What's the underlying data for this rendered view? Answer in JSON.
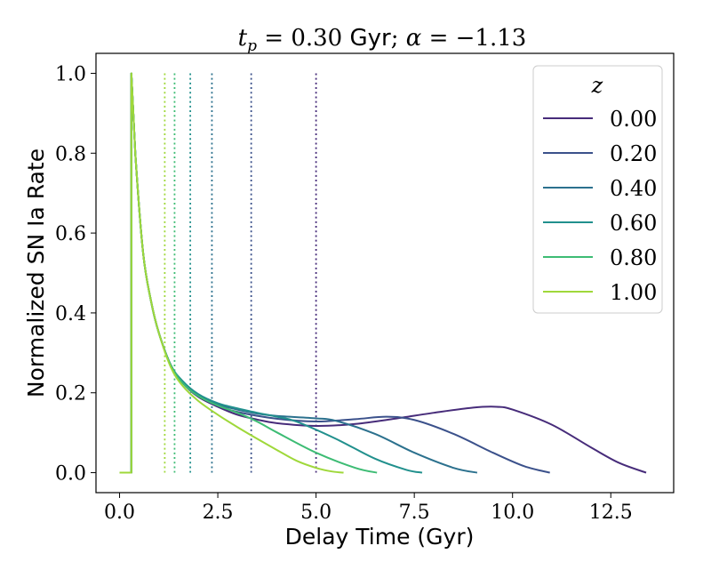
{
  "chart_data": {
    "type": "line",
    "title": "t_p = 0.30 Gyr; α = −1.13",
    "title_parts": {
      "tvar": "t",
      "tsub": "p",
      "eq1": " = 0.30 ",
      "unit": "Gyr",
      "sep": "; ",
      "alpha": "α",
      "eq2": " = −1.13"
    },
    "xlabel": "Delay Time (Gyr)",
    "ylabel": "Normalized SN Ia Rate",
    "xlim": [
      -0.6,
      14.1
    ],
    "ylim": [
      -0.05,
      1.05
    ],
    "xticks": [
      0.0,
      2.5,
      5.0,
      7.5,
      10.0,
      12.5
    ],
    "xtick_labels": [
      "0.0",
      "2.5",
      "5.0",
      "7.5",
      "10.0",
      "12.5"
    ],
    "yticks": [
      0.0,
      0.2,
      0.4,
      0.6,
      0.8,
      1.0
    ],
    "ytick_labels": [
      "0.0",
      "0.2",
      "0.4",
      "0.6",
      "0.8",
      "1.0"
    ],
    "grid": false,
    "legend": {
      "title": "z",
      "placement": "top-right"
    },
    "series": [
      {
        "name": "0.00",
        "color": "#472c7a",
        "x": [
          0.0,
          0.3,
          0.3,
          0.4,
          0.6,
          0.8,
          1.0,
          1.3,
          1.6,
          2.0,
          2.5,
          3.0,
          3.5,
          4.0,
          5.0,
          6.0,
          7.0,
          8.0,
          9.0,
          9.6,
          10.0,
          11.0,
          12.0,
          12.7,
          13.4
        ],
        "y": [
          0.0,
          0.0,
          1.0,
          0.8,
          0.55,
          0.43,
          0.35,
          0.27,
          0.225,
          0.19,
          0.165,
          0.145,
          0.133,
          0.124,
          0.117,
          0.122,
          0.135,
          0.15,
          0.163,
          0.165,
          0.158,
          0.12,
          0.063,
          0.025,
          0.0
        ],
        "cutoff": 5.0
      },
      {
        "name": "0.20",
        "color": "#3b518b",
        "x": [
          0.0,
          0.3,
          0.3,
          0.4,
          0.6,
          0.8,
          1.0,
          1.3,
          1.6,
          2.0,
          2.5,
          3.0,
          4.0,
          5.0,
          6.0,
          6.8,
          7.5,
          8.5,
          9.5,
          10.3,
          10.95
        ],
        "y": [
          0.0,
          0.0,
          1.0,
          0.8,
          0.55,
          0.43,
          0.35,
          0.27,
          0.226,
          0.192,
          0.168,
          0.152,
          0.135,
          0.128,
          0.134,
          0.14,
          0.132,
          0.097,
          0.05,
          0.016,
          0.0
        ],
        "cutoff": 3.35
      },
      {
        "name": "0.40",
        "color": "#2c718e",
        "x": [
          0.0,
          0.3,
          0.3,
          0.4,
          0.6,
          0.8,
          1.0,
          1.3,
          1.6,
          2.0,
          2.5,
          3.0,
          3.5,
          4.0,
          5.0,
          5.5,
          6.5,
          7.5,
          8.5,
          9.1
        ],
        "y": [
          0.0,
          0.0,
          1.0,
          0.8,
          0.55,
          0.43,
          0.35,
          0.27,
          0.228,
          0.195,
          0.171,
          0.158,
          0.148,
          0.142,
          0.136,
          0.13,
          0.097,
          0.05,
          0.012,
          0.0
        ],
        "cutoff": 2.35
      },
      {
        "name": "0.60",
        "color": "#21908d",
        "x": [
          0.0,
          0.3,
          0.3,
          0.4,
          0.6,
          0.8,
          1.0,
          1.3,
          1.6,
          2.0,
          2.5,
          3.0,
          3.5,
          4.0,
          4.5,
          5.5,
          6.5,
          7.3,
          7.7
        ],
        "y": [
          0.0,
          0.0,
          1.0,
          0.8,
          0.55,
          0.43,
          0.35,
          0.27,
          0.23,
          0.197,
          0.174,
          0.161,
          0.15,
          0.14,
          0.128,
          0.085,
          0.035,
          0.007,
          0.0
        ],
        "cutoff": 1.8
      },
      {
        "name": "0.80",
        "color": "#3dbc74",
        "x": [
          0.0,
          0.3,
          0.3,
          0.4,
          0.6,
          0.8,
          1.0,
          1.3,
          1.6,
          2.0,
          2.5,
          3.0,
          3.5,
          4.0,
          5.0,
          6.0,
          6.55
        ],
        "y": [
          0.0,
          0.0,
          1.0,
          0.8,
          0.55,
          0.43,
          0.35,
          0.27,
          0.225,
          0.192,
          0.168,
          0.15,
          0.128,
          0.101,
          0.05,
          0.012,
          0.0
        ],
        "cutoff": 1.4
      },
      {
        "name": "1.00",
        "color": "#9fd83a",
        "x": [
          0.0,
          0.3,
          0.3,
          0.4,
          0.6,
          0.8,
          1.0,
          1.3,
          1.6,
          2.0,
          2.5,
          3.0,
          3.5,
          4.0,
          4.5,
          5.0,
          5.4,
          5.7
        ],
        "y": [
          0.0,
          0.0,
          1.0,
          0.8,
          0.55,
          0.43,
          0.35,
          0.265,
          0.218,
          0.18,
          0.145,
          0.114,
          0.085,
          0.057,
          0.03,
          0.012,
          0.003,
          0.0
        ],
        "cutoff": 1.15
      }
    ]
  }
}
